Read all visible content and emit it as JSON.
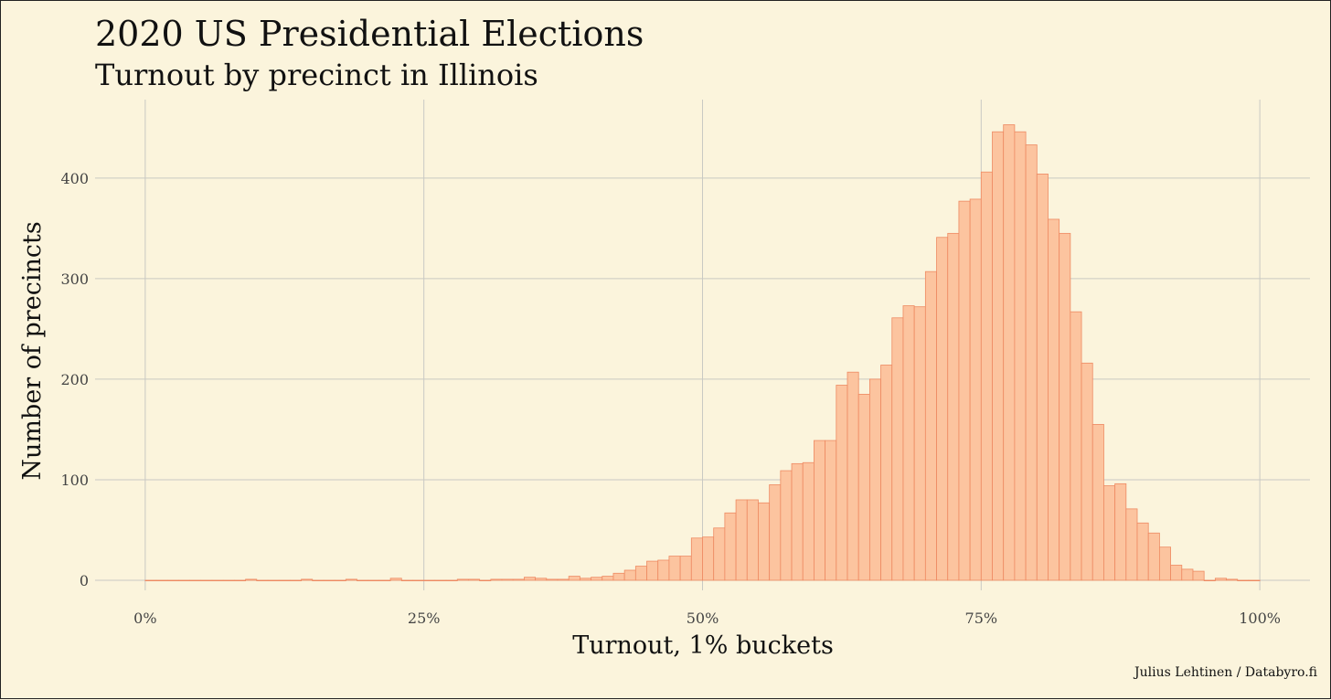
{
  "caption": "Julius Lehtinen / Databyro.fi",
  "colors": {
    "background": "#fbf4dc",
    "bar_fill": "#fcc49f",
    "bar_stroke": "#ee8a62",
    "grid": "#c9c9c3"
  },
  "chart_data": {
    "type": "bar",
    "title": "2020 US Presidential Elections",
    "subtitle": "Turnout by precinct in Illinois",
    "xlabel": "Turnout, 1% buckets",
    "ylabel": "Number of precincts",
    "xlim": [
      -0.045,
      1.045
    ],
    "ylim": [
      -10,
      478
    ],
    "grid": true,
    "x_ticks": [
      {
        "value": 0,
        "label": "0%"
      },
      {
        "value": 0.25,
        "label": "25%"
      },
      {
        "value": 0.5,
        "label": "50%"
      },
      {
        "value": 0.75,
        "label": "75%"
      },
      {
        "value": 1.0,
        "label": "100%"
      }
    ],
    "y_ticks": [
      {
        "value": 0,
        "label": "0"
      },
      {
        "value": 100,
        "label": "100"
      },
      {
        "value": 200,
        "label": "200"
      },
      {
        "value": 300,
        "label": "300"
      },
      {
        "value": 400,
        "label": "400"
      }
    ],
    "bin_start": 0.005,
    "bin_width": 0.01,
    "values": [
      0,
      0,
      0,
      0,
      0,
      0,
      0,
      0,
      0,
      1,
      0,
      0,
      0,
      0,
      1,
      0,
      0,
      0,
      1,
      0,
      0,
      0,
      2,
      0,
      0,
      0,
      0,
      0,
      1,
      1,
      0,
      1,
      1,
      1,
      3,
      2,
      1,
      1,
      4,
      2,
      3,
      4,
      7,
      10,
      14,
      19,
      20,
      24,
      24,
      42,
      43,
      52,
      67,
      80,
      80,
      77,
      95,
      109,
      116,
      117,
      139,
      139,
      194,
      207,
      185,
      200,
      214,
      261,
      273,
      272,
      307,
      341,
      345,
      377,
      379,
      406,
      446,
      453,
      446,
      433,
      404,
      359,
      345,
      267,
      216,
      155,
      94,
      96,
      71,
      57,
      47,
      33,
      15,
      11,
      9,
      0,
      2,
      1,
      0,
      0
    ]
  }
}
